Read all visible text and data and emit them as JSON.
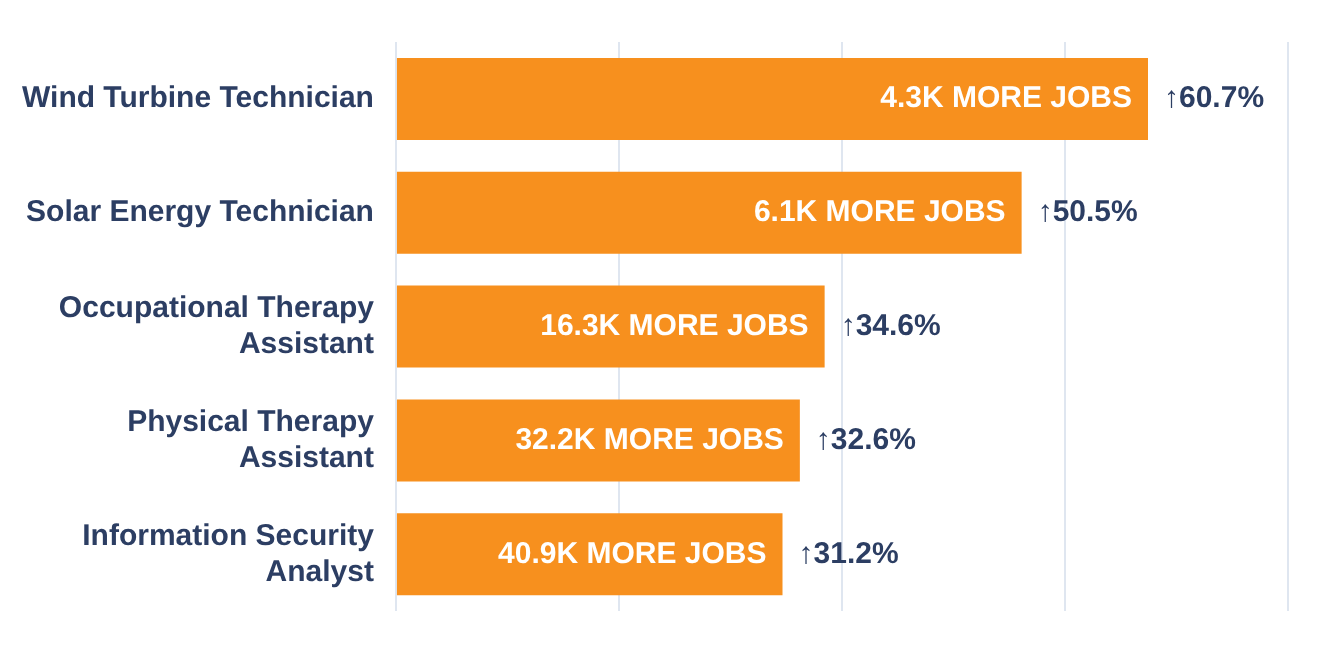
{
  "chart_data": {
    "type": "bar",
    "orientation": "horizontal",
    "categories": [
      "Wind Turbine Technician",
      "Solar Energy Technician",
      "Occupational Therapy Assistant",
      "Physical Therapy Assistant",
      "Information Security Analyst"
    ],
    "values": [
      60.7,
      50.5,
      34.6,
      32.6,
      31.2
    ],
    "color": "#f7901e",
    "value_labels": [
      "↑60.7%",
      "↑50.5%",
      "↑34.6%",
      "↑32.6%",
      "↑31.2%"
    ],
    "annotations": [
      {
        "text": "4.3K MORE JOBS",
        "y": "Wind Turbine Technician"
      },
      {
        "text": "6.1K MORE JOBS",
        "y": "Solar Energy Technician"
      },
      {
        "text": "16.3K MORE JOBS",
        "y": "Occupational Therapy Assistant"
      },
      {
        "text": "32.2K MORE JOBS",
        "y": "Physical Therapy Assistant"
      },
      {
        "text": "40.9K MORE JOBS",
        "y": "Information Security Analyst"
      }
    ],
    "xlim": [
      0,
      72
    ],
    "xticks": [
      {
        "value": 0,
        "label": null
      },
      {
        "value": 18,
        "label": null
      },
      {
        "value": 36,
        "label": null
      },
      {
        "value": 54,
        "label": null
      },
      {
        "value": 72,
        "label": null
      }
    ],
    "grid": "x",
    "legend": false
  }
}
